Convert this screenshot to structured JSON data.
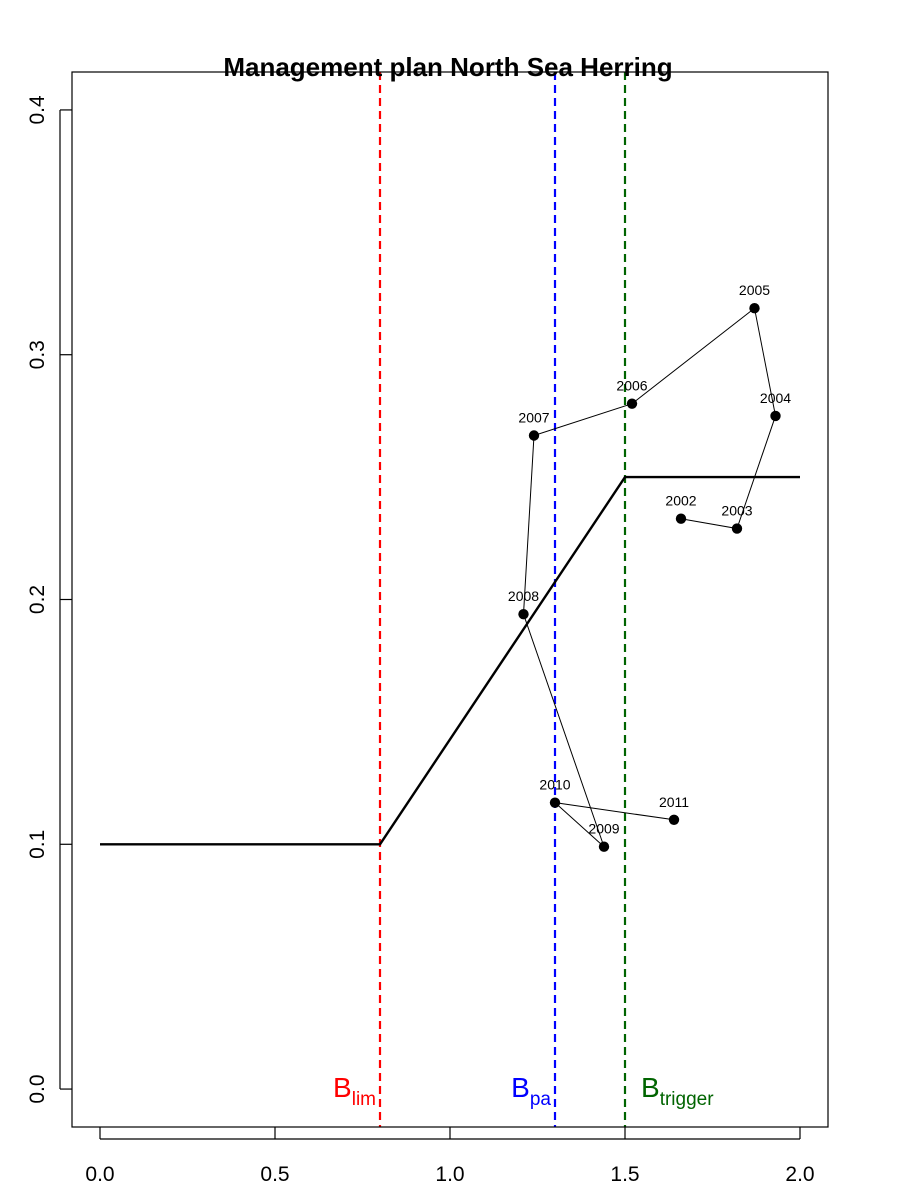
{
  "chart_data": {
    "type": "line",
    "title": "Management plan North Sea Herring",
    "xlabel": "",
    "ylabel": "",
    "xlim": [
      -0.08,
      2.08
    ],
    "ylim": [
      -0.0155,
      0.4155
    ],
    "x_ticks": [
      0.0,
      0.5,
      1.0,
      1.5,
      2.0
    ],
    "x_tick_labels": [
      "0.0",
      "0.5",
      "1.0",
      "1.5",
      "2.0"
    ],
    "y_ticks": [
      0.0,
      0.1,
      0.2,
      0.3,
      0.4
    ],
    "y_tick_labels": [
      "0.0",
      "0.1",
      "0.2",
      "0.3",
      "0.4"
    ],
    "grid": false,
    "harvest_rule": {
      "color": "#000000",
      "x": [
        0.0,
        0.8,
        1.5,
        2.0
      ],
      "y": [
        0.1,
        0.1,
        0.25,
        0.25
      ]
    },
    "reference_lines": [
      {
        "x": 0.8,
        "color": "#ff0000",
        "label": "B",
        "subscript": "lim"
      },
      {
        "x": 1.3,
        "color": "#0000ff",
        "label": "B",
        "subscript": "pa"
      },
      {
        "x": 1.5,
        "color": "#006400",
        "label": "B",
        "subscript": "trigger"
      }
    ],
    "series": [
      {
        "type": "line+points",
        "color": "#000000",
        "points": [
          {
            "label": "2002",
            "x": 1.66,
            "y": 0.233
          },
          {
            "label": "2003",
            "x": 1.82,
            "y": 0.229
          },
          {
            "label": "2004",
            "x": 1.93,
            "y": 0.275
          },
          {
            "label": "2005",
            "x": 1.87,
            "y": 0.319
          },
          {
            "label": "2006",
            "x": 1.52,
            "y": 0.28
          },
          {
            "label": "2007",
            "x": 1.24,
            "y": 0.267
          },
          {
            "label": "2008",
            "x": 1.21,
            "y": 0.194
          },
          {
            "label": "2009",
            "x": 1.44,
            "y": 0.099
          },
          {
            "label": "2010",
            "x": 1.3,
            "y": 0.117
          },
          {
            "label": "2011",
            "x": 1.64,
            "y": 0.11
          }
        ]
      }
    ]
  }
}
